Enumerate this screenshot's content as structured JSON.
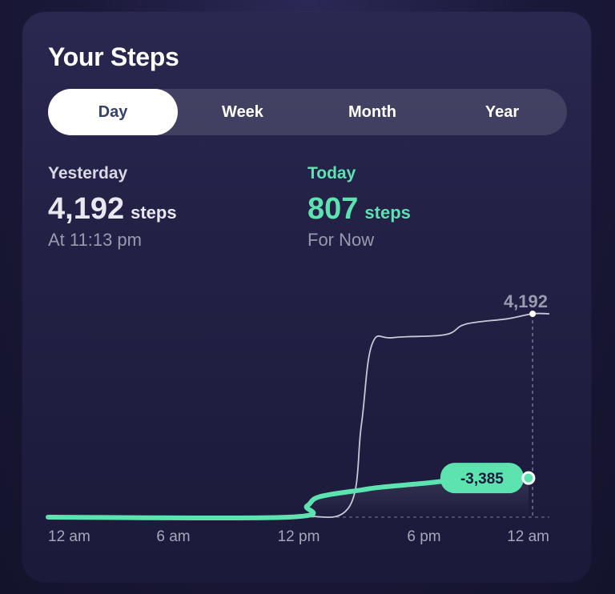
{
  "title": "Your Steps",
  "tabs": [
    {
      "label": "Day",
      "active": true
    },
    {
      "label": "Week",
      "active": false
    },
    {
      "label": "Month",
      "active": false
    },
    {
      "label": "Year",
      "active": false
    }
  ],
  "yesterday": {
    "label": "Yesterday",
    "value": "4,192",
    "unit": "steps",
    "sub": "At 11:13 pm"
  },
  "today": {
    "label": "Today",
    "value": "807",
    "unit": "steps",
    "sub": "For Now"
  },
  "chart_data": {
    "type": "line",
    "x_tick_labels": [
      "12 am",
      "6 am",
      "12 pm",
      "6 pm",
      "12 am"
    ],
    "x_domain": [
      0,
      24
    ],
    "y_domain": [
      0,
      4192
    ],
    "series": [
      {
        "key": "yesterday",
        "color": "#c7c7d6",
        "points": [
          [
            0,
            0
          ],
          [
            9,
            0
          ],
          [
            12,
            20
          ],
          [
            14.4,
            200
          ],
          [
            15,
            1900
          ],
          [
            15.5,
            3550
          ],
          [
            16.5,
            3700
          ],
          [
            19,
            3760
          ],
          [
            20,
            3980
          ],
          [
            22,
            4090
          ],
          [
            23.2,
            4192
          ],
          [
            24,
            4192
          ]
        ]
      },
      {
        "key": "today",
        "color": "#5de3b0",
        "points": [
          [
            0,
            0
          ],
          [
            11.5,
            0
          ],
          [
            12.4,
            230
          ],
          [
            13,
            420
          ],
          [
            15,
            560
          ],
          [
            16,
            620
          ],
          [
            18.5,
            720
          ],
          [
            20,
            807
          ],
          [
            23,
            807
          ]
        ]
      }
    ],
    "annotations": {
      "max_label": "4,192",
      "diff_label": "-3,385"
    },
    "colors": {
      "accent": "#5de3b0",
      "muted": "#c7c7d6"
    }
  }
}
